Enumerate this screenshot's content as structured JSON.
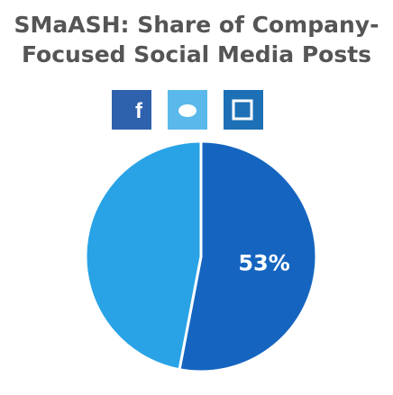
{
  "chart_data": {
    "type": "pie",
    "title_lines": [
      "SMaASH: Share of Company-",
      "Focused Social Media Posts"
    ],
    "values": [
      53,
      47
    ],
    "value_labels": [
      "53%",
      null
    ],
    "colors": [
      "#1565c0",
      "#29a3e6"
    ]
  }
}
